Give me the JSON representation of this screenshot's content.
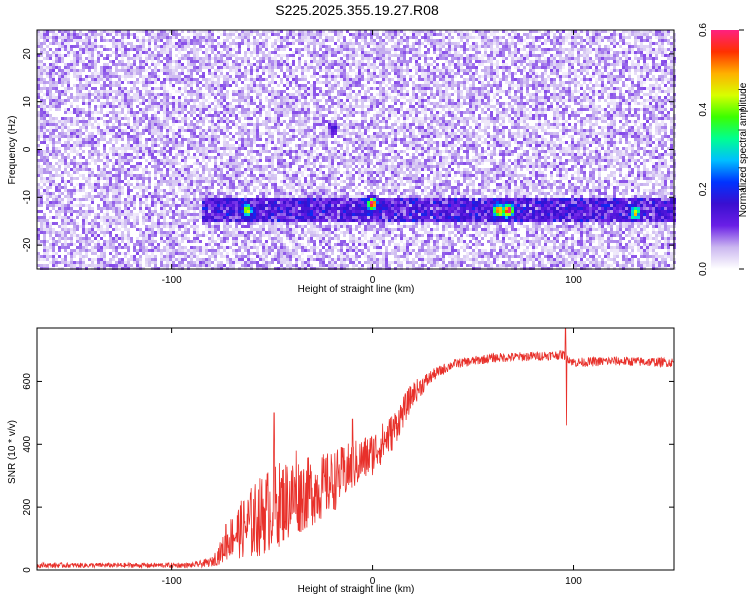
{
  "title": "S225.2025.355.19.27.R08",
  "chart_data": [
    {
      "type": "heatmap",
      "xlabel": "Height of straight line (km)",
      "ylabel": "Frequency (Hz)",
      "xlim": [
        -167,
        150
      ],
      "ylim": [
        -25,
        25
      ],
      "xticks": [
        -100,
        0,
        100
      ],
      "yticks": [
        -20,
        -10,
        0,
        10,
        20
      ],
      "grid": false,
      "colorbar": {
        "label": "Normalized spectral amplitude",
        "range": [
          0.0,
          0.6
        ],
        "ticks": [
          0.0,
          0.2,
          0.4,
          0.6
        ],
        "colors": [
          "#ffffff",
          "#cbb7f0",
          "#6a1fe6",
          "#3a0fd0",
          "#0033ff",
          "#00bfff",
          "#00ff90",
          "#3cff00",
          "#d8ff00",
          "#ffb000",
          "#ff3000",
          "#ff2080"
        ]
      },
      "features": [
        {
          "description_value": "background_level",
          "amplitude": 0.05
        },
        {
          "band_frequency_hz": -12.5,
          "band_x_range_km": [
            -85,
            150
          ],
          "amplitude": 0.15
        },
        {
          "hotspots": [
            {
              "x": -63,
              "y": -12.5,
              "amplitude": 0.3
            },
            {
              "x": -1,
              "y": -11,
              "amplitude": 0.55
            },
            {
              "x": 62,
              "y": -12.5,
              "amplitude": 0.45
            },
            {
              "x": 67,
              "y": -12.5,
              "amplitude": 0.55
            },
            {
              "x": 130,
              "y": -13,
              "amplitude": 0.35
            },
            {
              "x": -20,
              "y": 5,
              "amplitude": 0.15
            }
          ]
        }
      ]
    },
    {
      "type": "line",
      "xlabel": "Height of straight line (km)",
      "ylabel": "SNR (10 * v/v)",
      "xlim": [
        -167,
        150
      ],
      "ylim": [
        0,
        770
      ],
      "xticks": [
        -100,
        0,
        100
      ],
      "yticks": [
        0,
        200,
        400,
        600
      ],
      "grid": false,
      "series": [
        {
          "color": "#e8302a",
          "envelope": {
            "x": [
              -167,
              -90,
              -80,
              -75,
              -70,
              -60,
              -50,
              -40,
              -30,
              -20,
              -10,
              0,
              10,
              20,
              30,
              40,
              60,
              80,
              95,
              100,
              120,
              150
            ],
            "y_center": [
              15,
              15,
              25,
              60,
              110,
              150,
              200,
              230,
              250,
              280,
              330,
              370,
              440,
              560,
              620,
              655,
              675,
              680,
              685,
              660,
              665,
              660
            ],
            "y_noise": [
              8,
              8,
              15,
              40,
              70,
              120,
              140,
              130,
              110,
              100,
              80,
              70,
              60,
              40,
              20,
              15,
              15,
              15,
              15,
              15,
              15,
              15
            ]
          },
          "spikes": [
            {
              "x": -73,
              "y": 145
            },
            {
              "x": -49,
              "y": 500
            },
            {
              "x": -38,
              "y": 380
            },
            {
              "x": -10,
              "y": 480
            },
            {
              "x": 96,
              "y": 770
            },
            {
              "x": 96.5,
              "y": 460
            }
          ]
        }
      ]
    }
  ]
}
